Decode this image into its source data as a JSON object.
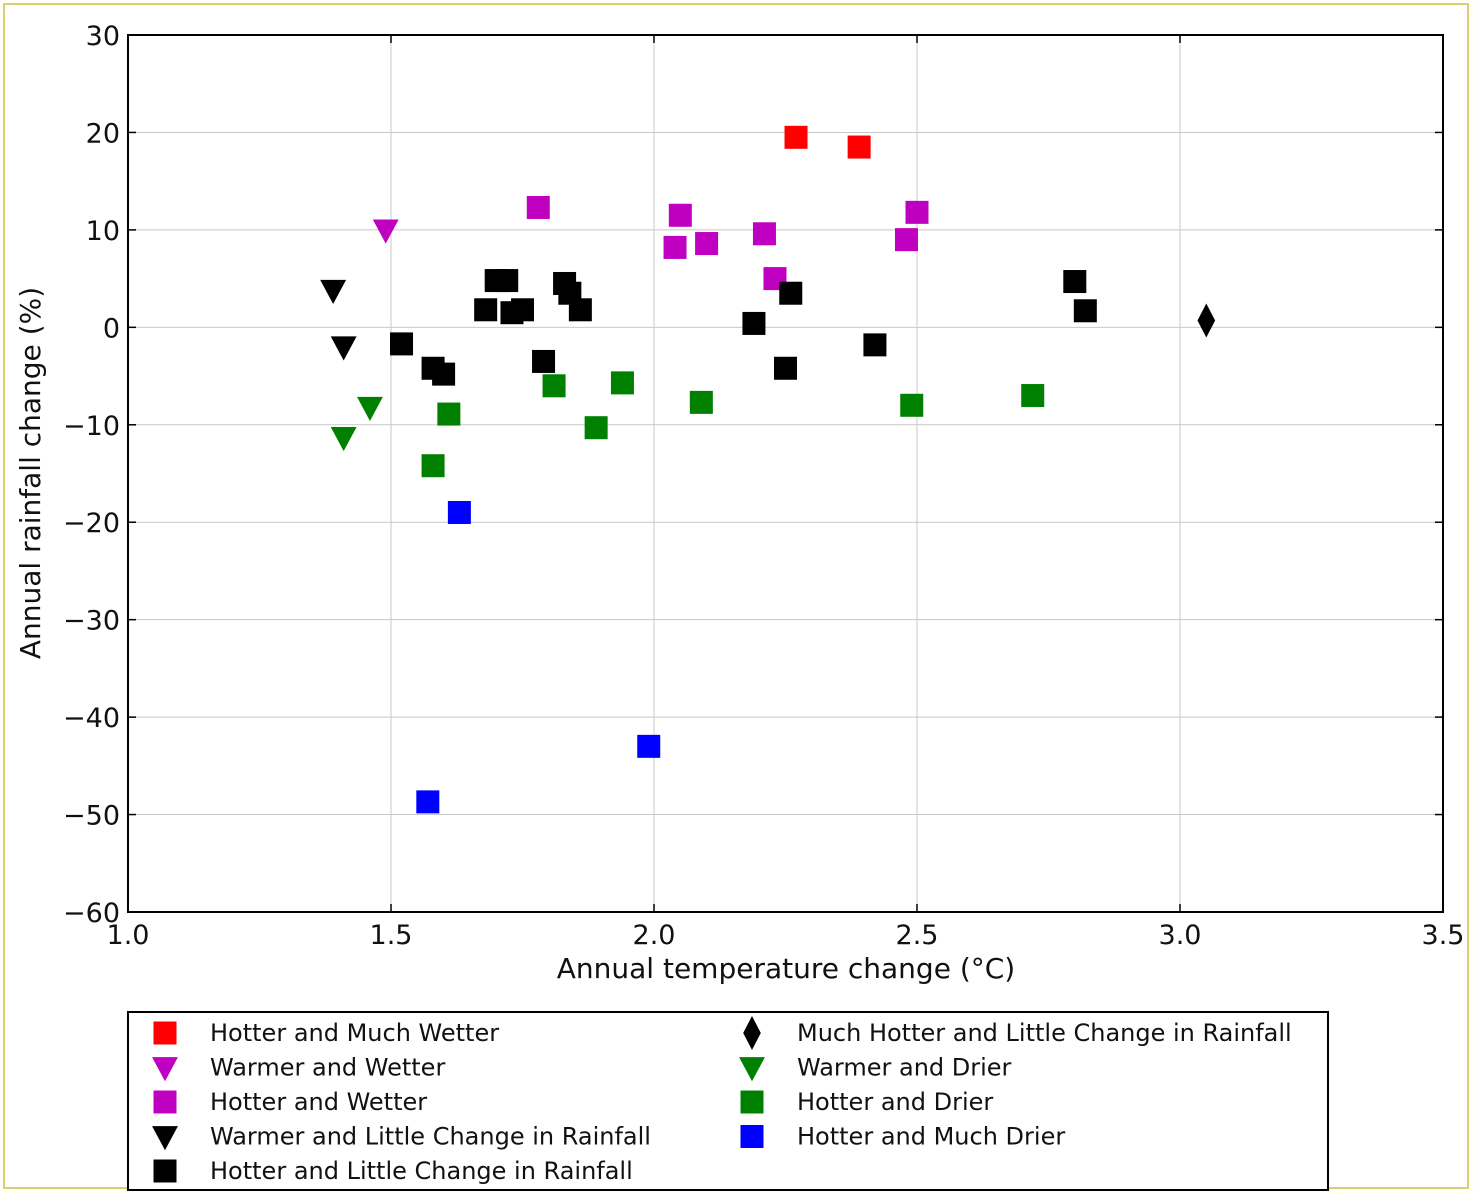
{
  "chart_data": {
    "type": "scatter",
    "title": "",
    "xlabel": "Annual temperature change (°C)",
    "ylabel": "Annual rainfall change (%)",
    "xlim": [
      1.0,
      3.5
    ],
    "ylim": [
      -60,
      30
    ],
    "xticks": [
      "1.0",
      "1.5",
      "2.0",
      "2.5",
      "3.0",
      "3.5"
    ],
    "yticks": [
      "30",
      "20",
      "10",
      "0",
      "−10",
      "−20",
      "−30",
      "−40",
      "−50",
      "−60"
    ],
    "grid": true,
    "legend_position": "bottom-outside",
    "series": [
      {
        "name": "Hotter and Much Wetter",
        "marker": "square",
        "color": "#ff0000",
        "points": [
          [
            2.27,
            19.5
          ],
          [
            2.39,
            18.5
          ]
        ]
      },
      {
        "name": "Warmer and Wetter",
        "marker": "triangle-down",
        "color": "#c000c0",
        "points": [
          [
            1.49,
            10.0
          ]
        ]
      },
      {
        "name": "Hotter and Wetter",
        "marker": "square",
        "color": "#c000c0",
        "points": [
          [
            1.78,
            12.3
          ],
          [
            2.05,
            11.5
          ],
          [
            2.04,
            8.2
          ],
          [
            2.1,
            8.6
          ],
          [
            2.21,
            9.6
          ],
          [
            2.23,
            5.0
          ],
          [
            2.48,
            9.0
          ],
          [
            2.5,
            11.8
          ]
        ]
      },
      {
        "name": "Warmer and Little Change in Rainfall",
        "marker": "triangle-down",
        "color": "#000000",
        "points": [
          [
            1.39,
            3.8
          ],
          [
            1.41,
            -2.0
          ]
        ]
      },
      {
        "name": "Hotter and Little Change in Rainfall",
        "marker": "square",
        "color": "#000000",
        "points": [
          [
            1.52,
            -1.7
          ],
          [
            1.58,
            -4.2
          ],
          [
            1.6,
            -4.8
          ],
          [
            1.68,
            1.8
          ],
          [
            1.7,
            4.8
          ],
          [
            1.72,
            4.8
          ],
          [
            1.73,
            1.5
          ],
          [
            1.75,
            1.8
          ],
          [
            1.79,
            -3.5
          ],
          [
            1.83,
            4.5
          ],
          [
            1.84,
            3.5
          ],
          [
            1.86,
            1.8
          ],
          [
            2.19,
            0.4
          ],
          [
            2.25,
            -4.2
          ],
          [
            2.26,
            3.5
          ],
          [
            2.42,
            -1.8
          ],
          [
            2.8,
            4.7
          ],
          [
            2.82,
            1.7
          ]
        ]
      },
      {
        "name": "Much Hotter and Little Change in Rainfall",
        "marker": "diamond",
        "color": "#000000",
        "points": [
          [
            3.05,
            0.7
          ]
        ]
      },
      {
        "name": "Warmer and Drier",
        "marker": "triangle-down",
        "color": "#008000",
        "points": [
          [
            1.46,
            -8.2
          ],
          [
            1.41,
            -11.3
          ]
        ]
      },
      {
        "name": "Hotter and Drier",
        "marker": "square",
        "color": "#008000",
        "points": [
          [
            1.58,
            -14.2
          ],
          [
            1.61,
            -8.9
          ],
          [
            1.81,
            -6.0
          ],
          [
            1.89,
            -10.3
          ],
          [
            1.94,
            -5.7
          ],
          [
            2.09,
            -7.7
          ],
          [
            2.49,
            -8.0
          ],
          [
            2.72,
            -7.0
          ]
        ]
      },
      {
        "name": "Hotter and Much Drier",
        "marker": "square",
        "color": "#0000ff",
        "points": [
          [
            1.63,
            -19.0
          ],
          [
            1.99,
            -43.0
          ],
          [
            1.57,
            -48.7
          ]
        ]
      }
    ],
    "legend_columns": [
      [
        "Hotter and Much Wetter",
        "Warmer and Wetter",
        "Hotter and Wetter",
        "Warmer and Little Change in Rainfall",
        "Hotter and Little Change in Rainfall"
      ],
      [
        "Much Hotter and Little Change in Rainfall",
        "Warmer and Drier",
        "Hotter and Drier",
        "Hotter and Much Drier"
      ]
    ]
  }
}
